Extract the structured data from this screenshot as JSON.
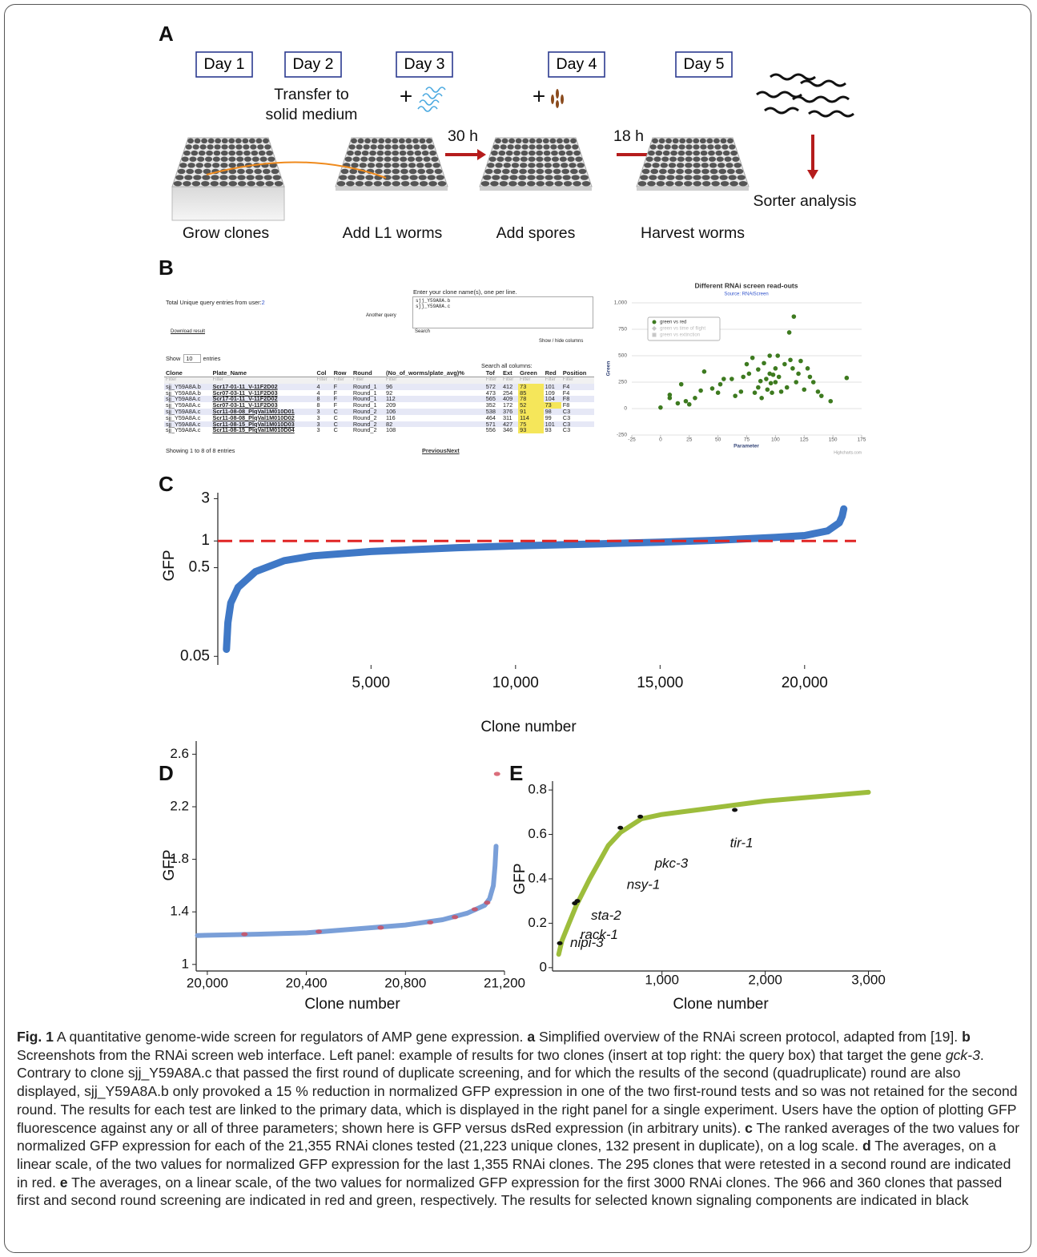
{
  "panels": {
    "a": {
      "label": "A",
      "days": [
        "Day 1",
        "Day 2",
        "Day 3",
        "Day 4",
        "Day 5"
      ],
      "transfer": [
        "Transfer to",
        "solid medium"
      ],
      "plus": "+",
      "intervals": [
        "30 h",
        "18 h"
      ],
      "sorter": "Sorter analysis",
      "steps": [
        "Grow clones",
        "Add L1 worms",
        "Add spores",
        "Harvest worms"
      ]
    },
    "b": {
      "label": "B",
      "total_label": "Total Unique query entries from user:",
      "total": "2",
      "another_query": "Another query",
      "download": "Download result",
      "query_prompt": "Enter your clone name(s), one per line.",
      "query_lines": [
        "sjj_Y59A8A.b",
        "sjj_Y59A8A.c"
      ],
      "search": "Search",
      "show_hide": "Show / hide columns",
      "show": "Show",
      "show_count": "10",
      "entries": "entries",
      "search_all": "Search all columns:",
      "table": {
        "headers": [
          "Clone",
          "Plate_Name",
          "Col",
          "Row",
          "Round",
          "(No_of_worms/plate_avg)%",
          "Tof",
          "Ext",
          "Green",
          "Red",
          "Position"
        ],
        "filter": "Filter",
        "rows": [
          [
            "sjj_Y59A8A.b",
            "Scr17-01-11_V-11F2D02",
            "4",
            "F",
            "Round_1",
            "96",
            "572",
            "412",
            "73",
            "101",
            "F4"
          ],
          [
            "sjj_Y59A8A.b",
            "Scr07-03-11_V-11F2D03",
            "4",
            "F",
            "Round_1",
            "92",
            "473",
            "254",
            "85",
            "109",
            "F4"
          ],
          [
            "sjj_Y59A8A.c",
            "Scr17-01-11_V-11F2D02",
            "8",
            "F",
            "Round_1",
            "112",
            "565",
            "409",
            "78",
            "104",
            "F8"
          ],
          [
            "sjj_Y59A8A.c",
            "Scr07-03-11_V-11F2D03",
            "8",
            "F",
            "Round_1",
            "209",
            "352",
            "172",
            "52",
            "73",
            "F8"
          ],
          [
            "sjj_Y59A8A.c",
            "Scr11-08-08_PlqVal1M010D01",
            "3",
            "C",
            "Round_2",
            "106",
            "538",
            "376",
            "91",
            "98",
            "C3"
          ],
          [
            "sjj_Y59A8A.c",
            "Scr11-08-08_PlqVal1M010D02",
            "3",
            "C",
            "Round_2",
            "116",
            "464",
            "311",
            "114",
            "99",
            "C3"
          ],
          [
            "sjj_Y59A8A.c",
            "Scr11-08-15_PlqVal1M010D03",
            "3",
            "C",
            "Round_2",
            "82",
            "571",
            "427",
            "75",
            "101",
            "C3"
          ],
          [
            "sjj_Y59A8A.c",
            "Scr11-08-15_PlqVal1M010D04",
            "3",
            "C",
            "Round_2",
            "108",
            "556",
            "346",
            "93",
            "93",
            "C3"
          ]
        ]
      },
      "showing": "Showing 1 to 8 of 8 entries",
      "previous": "Previous",
      "next": "Next"
    },
    "c": {
      "label": "C"
    },
    "d": {
      "label": "D"
    },
    "e": {
      "label": "E"
    }
  },
  "chart_data": [
    {
      "type": "scatter",
      "title": "Different RNAi screen read-outs",
      "subtitle": "Source: RNAiScreen",
      "x_label": "Parameter",
      "y_label": "Green",
      "credit": "Highcharts.com",
      "xlim": [
        -25,
        175
      ],
      "xticks": [
        -25,
        0,
        25,
        50,
        75,
        100,
        125,
        150,
        175
      ],
      "ylim": [
        -250,
        1000
      ],
      "yticks": [
        -250,
        0,
        250,
        500,
        750,
        {
          "value": 1000,
          "label": "1,000"
        }
      ],
      "grid": true,
      "legend": "upper left",
      "series": [
        {
          "name": "green vs red",
          "color": "#3d7a1f",
          "marker": "circle",
          "x": [
            0,
            8,
            8,
            15,
            18,
            22,
            25,
            30,
            35,
            38,
            45,
            50,
            52,
            55,
            62,
            65,
            70,
            72,
            75,
            77,
            80,
            82,
            85,
            85,
            87,
            88,
            90,
            92,
            93,
            95,
            95,
            96,
            97,
            98,
            100,
            100,
            102,
            103,
            105,
            108,
            110,
            112,
            113,
            115,
            116,
            118,
            120,
            122,
            125,
            128,
            130,
            133,
            137,
            140,
            148,
            162
          ],
          "values": [
            10,
            100,
            130,
            50,
            230,
            70,
            40,
            100,
            170,
            350,
            190,
            150,
            230,
            280,
            280,
            120,
            160,
            300,
            420,
            330,
            480,
            150,
            200,
            370,
            260,
            100,
            430,
            280,
            180,
            500,
            330,
            240,
            150,
            320,
            380,
            250,
            500,
            300,
            160,
            420,
            200,
            720,
            460,
            380,
            870,
            250,
            330,
            450,
            180,
            380,
            300,
            250,
            160,
            120,
            70,
            290
          ]
        },
        {
          "name": "green vs time of flight",
          "color": "#c8c8c8",
          "marker": "diamond",
          "x": [],
          "values": []
        },
        {
          "name": "green vs extinction",
          "color": "#c8c8c8",
          "marker": "square",
          "x": [],
          "values": []
        }
      ]
    },
    {
      "type": "line",
      "x_label": "Clone number",
      "y_label": "GFP",
      "log_y": true,
      "xlim": [
        -300,
        22000
      ],
      "xticks": [
        {
          "value": 5000,
          "label": "5,000"
        },
        {
          "value": 10000,
          "label": "10,000"
        },
        {
          "value": 15000,
          "label": "15,000"
        },
        {
          "value": 20000,
          "label": "20,000"
        }
      ],
      "ylim": [
        0.04,
        3.5
      ],
      "yticks": [
        0.05,
        0.5,
        1,
        3
      ],
      "hline": {
        "value": 1,
        "color": "#e02424"
      },
      "series": [
        {
          "color": "#3f78c6",
          "mode": "line",
          "x": [
            0,
            50,
            150,
            400,
            1000,
            2000,
            3000,
            5000,
            8000,
            10000,
            13000,
            15000,
            17000,
            19000,
            20000,
            20800,
            21200,
            21300,
            21355
          ],
          "values": [
            0.06,
            0.12,
            0.2,
            0.3,
            0.45,
            0.6,
            0.68,
            0.76,
            0.84,
            0.88,
            0.93,
            0.97,
            1.02,
            1.1,
            1.15,
            1.3,
            1.6,
            1.9,
            2.3
          ]
        }
      ]
    },
    {
      "type": "line",
      "x_label": "Clone number",
      "y_label": "GFP",
      "xlim": [
        19955,
        21200
      ],
      "xticks": [
        {
          "value": 20000,
          "label": "20,000"
        },
        {
          "value": 20400,
          "label": "20,400"
        },
        {
          "value": 20800,
          "label": "20,800"
        },
        {
          "value": 21200,
          "label": "21,200"
        }
      ],
      "ylim": [
        0.95,
        2.7
      ],
      "yticks": [
        1,
        1.4,
        1.8,
        2.2,
        2.6
      ],
      "series": [
        {
          "color": "#7a9fd8",
          "mode": "line",
          "x": [
            19960,
            20200,
            20400,
            20600,
            20800,
            20950,
            21050,
            21120,
            21140,
            21155,
            21162,
            21166
          ],
          "values": [
            1.22,
            1.23,
            1.24,
            1.27,
            1.3,
            1.34,
            1.39,
            1.45,
            1.5,
            1.6,
            1.75,
            1.9
          ]
        },
        {
          "color": "#d24a5a",
          "mode": "markers",
          "x": [
            20150,
            20450,
            20700,
            20900,
            21000,
            21080,
            21130,
            21170
          ],
          "values": [
            1.23,
            1.25,
            1.28,
            1.32,
            1.36,
            1.42,
            1.47,
            2.45
          ]
        }
      ]
    },
    {
      "type": "line",
      "x_label": "Clone number",
      "y_label": "GFP",
      "xlim": [
        -60,
        3120
      ],
      "xticks": [
        {
          "value": 1000,
          "label": "1,000"
        },
        {
          "value": 2000,
          "label": "2,000"
        },
        {
          "value": 3000,
          "label": "3,000"
        }
      ],
      "ylim": [
        -0.015,
        0.84
      ],
      "yticks": [
        0,
        0.2,
        0.4,
        0.6,
        0.8
      ],
      "series": [
        {
          "color": "#9dbd3c",
          "mode": "line",
          "x": [
            0,
            30,
            100,
            170,
            300,
            480,
            600,
            800,
            1000,
            1500,
            2000,
            2500,
            3000
          ],
          "values": [
            0.06,
            0.12,
            0.2,
            0.28,
            0.4,
            0.55,
            0.61,
            0.67,
            0.69,
            0.72,
            0.75,
            0.77,
            0.79
          ]
        }
      ],
      "annotations": [
        {
          "text": "nipi-3",
          "x": 10,
          "y": 0.11
        },
        {
          "text": "sta-2",
          "x": 180,
          "y": 0.3
        },
        {
          "text": "rack-1",
          "x": 155,
          "y": 0.29
        },
        {
          "text": "nsy-1",
          "x": 597,
          "y": 0.63
        },
        {
          "text": "pkc-3",
          "x": 790,
          "y": 0.68
        },
        {
          "text": "tir-1",
          "x": 1705,
          "y": 0.71
        }
      ]
    }
  ],
  "caption": [
    {
      "text": "Fig. 1",
      "style": "bold"
    },
    {
      "text": " A quantitative genome-wide screen for regulators of AMP gene expression. ",
      "style": "normal"
    },
    {
      "text": "a",
      "style": "bold"
    },
    {
      "text": " Simplified overview of the RNAi screen protocol, adapted from [19]. ",
      "style": "normal"
    },
    {
      "text": "b",
      "style": "bold"
    },
    {
      "text": " Screenshots from the RNAi screen web interface. Left panel: example of results for two clones (insert at top right: the query box) that target the gene ",
      "style": "normal"
    },
    {
      "text": "gck-3",
      "style": "italic"
    },
    {
      "text": ". Contrary to clone sjj_Y59A8A.c that passed the first round of duplicate screening, and for which the results of the second (quadruplicate) round are also displayed, sjj_Y59A8A.b only provoked a 15 % reduction in normalized GFP expression in one of the two first-round tests and so was not retained for the second round. The results for each test are linked to the primary data, which is displayed in the right panel for a single experiment. Users have the option of plotting GFP fluorescence against any or all of three parameters; shown here is GFP versus dsRed expression (in arbitrary units). ",
      "style": "normal"
    },
    {
      "text": "c",
      "style": "bold"
    },
    {
      "text": " The ranked averages of the two values for normalized GFP expression for each of the 21,355 RNAi clones tested (21,223 unique clones, 132 present in duplicate), on a log scale. ",
      "style": "normal"
    },
    {
      "text": "d",
      "style": "bold"
    },
    {
      "text": " The averages, on a linear scale, of the two values for normalized GFP expression for the last 1,355 RNAi clones. The 295 clones that were retested in a second round are indicated in red. ",
      "style": "normal"
    },
    {
      "text": "e",
      "style": "bold"
    },
    {
      "text": " The averages, on a linear scale, of the two values for normalized GFP expression for the first 3000 RNAi clones. The 966 and 360 clones that passed first and second round screening are indicated in red and green, respectively. The results for selected known signaling components are indicated in black",
      "style": "normal"
    }
  ]
}
